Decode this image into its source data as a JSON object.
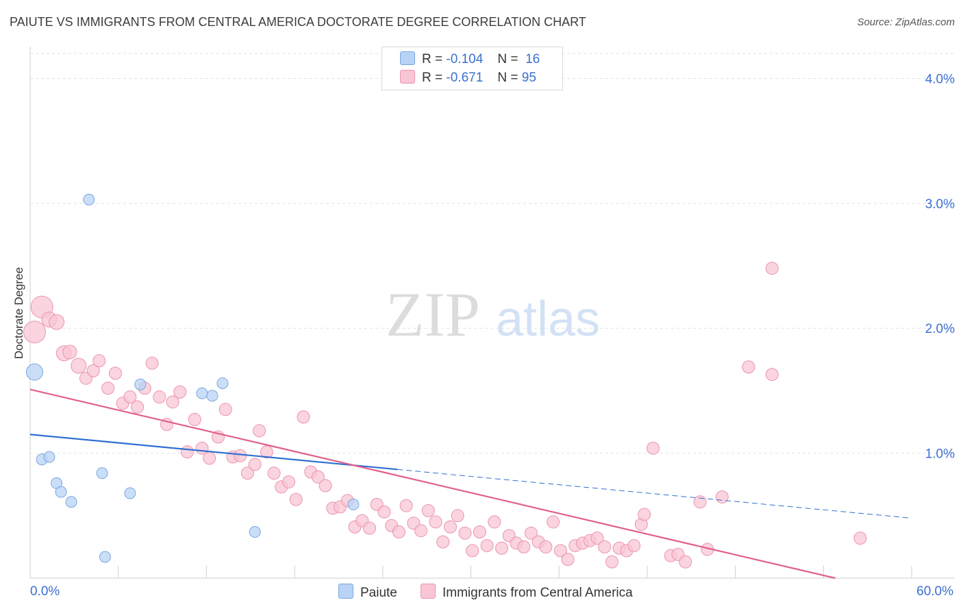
{
  "title": "PAIUTE VS IMMIGRANTS FROM CENTRAL AMERICA DOCTORATE DEGREE CORRELATION CHART",
  "source": "Source: ZipAtlas.com",
  "watermark": {
    "zip": "ZIP",
    "atlas": "atlas"
  },
  "legend": {
    "r_label": "R =",
    "n_label": "N =",
    "series1": {
      "r": "-0.104",
      "n": "16"
    },
    "series2": {
      "r": "-0.671",
      "n": "95"
    }
  },
  "bottom_legend": {
    "series1": "Paiute",
    "series2": "Immigrants from Central America"
  },
  "colors": {
    "paiute_fill": "#b8d3f5",
    "paiute_stroke": "#7aa6e0",
    "paiute_line": "#2f6fd0",
    "central_fill": "#f8c6d4",
    "central_stroke": "#eb94ae",
    "central_line": "#e0608a",
    "axis_text": "#3b6fd0"
  },
  "chart_data": {
    "type": "scatter",
    "title": "PAIUTE VS IMMIGRANTS FROM CENTRAL AMERICA DOCTORATE DEGREE CORRELATION CHART",
    "xlabel": "",
    "ylabel": "Doctorate Degree",
    "xlim": [
      0,
      60
    ],
    "ylim": [
      0,
      4.2
    ],
    "x_tick_labels": [
      "0.0%",
      "60.0%"
    ],
    "y_ticks": [
      1,
      2,
      3,
      4
    ],
    "y_tick_labels": [
      "1.0%",
      "2.0%",
      "3.0%",
      "4.0%"
    ],
    "grid": true,
    "series": [
      {
        "name": "Paiute",
        "r": -0.104,
        "n": 16,
        "trend": {
          "x0": 0,
          "y0": 1.15,
          "x1": 25,
          "y1": 0.87,
          "dash_to_x": 60,
          "dash_to_y": 0.48
        },
        "points": [
          {
            "x": 0.3,
            "y": 1.65,
            "s": 12
          },
          {
            "x": 4,
            "y": 3.03,
            "s": 8
          },
          {
            "x": 0.8,
            "y": 0.95,
            "s": 8
          },
          {
            "x": 1.3,
            "y": 0.97,
            "s": 8
          },
          {
            "x": 1.8,
            "y": 0.76,
            "s": 8
          },
          {
            "x": 2.1,
            "y": 0.69,
            "s": 8
          },
          {
            "x": 2.8,
            "y": 0.61,
            "s": 8
          },
          {
            "x": 4.9,
            "y": 0.84,
            "s": 8
          },
          {
            "x": 5.1,
            "y": 0.17,
            "s": 8
          },
          {
            "x": 6.8,
            "y": 0.68,
            "s": 8
          },
          {
            "x": 7.5,
            "y": 1.55,
            "s": 8
          },
          {
            "x": 11.7,
            "y": 1.48,
            "s": 8
          },
          {
            "x": 12.4,
            "y": 1.46,
            "s": 8
          },
          {
            "x": 13.1,
            "y": 1.56,
            "s": 8
          },
          {
            "x": 15.3,
            "y": 0.37,
            "s": 8
          },
          {
            "x": 22.0,
            "y": 0.59,
            "s": 8
          }
        ]
      },
      {
        "name": "Immigrants from Central America",
        "r": -0.671,
        "n": 95,
        "trend": {
          "x0": 0,
          "y0": 1.51,
          "x1": 54.8,
          "y1": 0.0
        },
        "points": [
          {
            "x": 0.3,
            "y": 1.97,
            "s": 16
          },
          {
            "x": 0.8,
            "y": 2.17,
            "s": 16
          },
          {
            "x": 1.3,
            "y": 2.07,
            "s": 11
          },
          {
            "x": 1.8,
            "y": 2.05,
            "s": 11
          },
          {
            "x": 2.3,
            "y": 1.8,
            "s": 11
          },
          {
            "x": 2.7,
            "y": 1.81,
            "s": 10
          },
          {
            "x": 3.3,
            "y": 1.7,
            "s": 11
          },
          {
            "x": 3.8,
            "y": 1.6,
            "s": 9
          },
          {
            "x": 4.3,
            "y": 1.66,
            "s": 9
          },
          {
            "x": 4.7,
            "y": 1.74,
            "s": 9
          },
          {
            "x": 5.3,
            "y": 1.52,
            "s": 9
          },
          {
            "x": 5.8,
            "y": 1.64,
            "s": 9
          },
          {
            "x": 6.3,
            "y": 1.4,
            "s": 9
          },
          {
            "x": 6.8,
            "y": 1.45,
            "s": 9
          },
          {
            "x": 7.3,
            "y": 1.37,
            "s": 9
          },
          {
            "x": 7.8,
            "y": 1.52,
            "s": 9
          },
          {
            "x": 8.3,
            "y": 1.72,
            "s": 9
          },
          {
            "x": 8.8,
            "y": 1.45,
            "s": 9
          },
          {
            "x": 9.3,
            "y": 1.23,
            "s": 9
          },
          {
            "x": 9.7,
            "y": 1.41,
            "s": 9
          },
          {
            "x": 10.2,
            "y": 1.49,
            "s": 9
          },
          {
            "x": 10.7,
            "y": 1.01,
            "s": 9
          },
          {
            "x": 11.2,
            "y": 1.27,
            "s": 9
          },
          {
            "x": 11.7,
            "y": 1.04,
            "s": 9
          },
          {
            "x": 12.2,
            "y": 0.96,
            "s": 9
          },
          {
            "x": 12.8,
            "y": 1.13,
            "s": 9
          },
          {
            "x": 13.3,
            "y": 1.35,
            "s": 9
          },
          {
            "x": 13.8,
            "y": 0.97,
            "s": 9
          },
          {
            "x": 14.3,
            "y": 0.98,
            "s": 9
          },
          {
            "x": 14.8,
            "y": 0.84,
            "s": 9
          },
          {
            "x": 15.3,
            "y": 0.91,
            "s": 9
          },
          {
            "x": 15.6,
            "y": 1.18,
            "s": 9
          },
          {
            "x": 16.1,
            "y": 1.01,
            "s": 9
          },
          {
            "x": 16.6,
            "y": 0.84,
            "s": 9
          },
          {
            "x": 17.1,
            "y": 0.73,
            "s": 9
          },
          {
            "x": 17.6,
            "y": 0.77,
            "s": 9
          },
          {
            "x": 18.1,
            "y": 0.63,
            "s": 9
          },
          {
            "x": 18.6,
            "y": 1.29,
            "s": 9
          },
          {
            "x": 19.1,
            "y": 0.85,
            "s": 9
          },
          {
            "x": 19.6,
            "y": 0.81,
            "s": 9
          },
          {
            "x": 20.1,
            "y": 0.74,
            "s": 9
          },
          {
            "x": 20.6,
            "y": 0.56,
            "s": 9
          },
          {
            "x": 21.1,
            "y": 0.57,
            "s": 9
          },
          {
            "x": 21.6,
            "y": 0.62,
            "s": 9
          },
          {
            "x": 22.1,
            "y": 0.41,
            "s": 9
          },
          {
            "x": 22.6,
            "y": 0.46,
            "s": 9
          },
          {
            "x": 23.1,
            "y": 0.4,
            "s": 9
          },
          {
            "x": 23.6,
            "y": 0.59,
            "s": 9
          },
          {
            "x": 24.1,
            "y": 0.53,
            "s": 9
          },
          {
            "x": 24.6,
            "y": 0.42,
            "s": 9
          },
          {
            "x": 25.1,
            "y": 0.37,
            "s": 9
          },
          {
            "x": 25.6,
            "y": 0.58,
            "s": 9
          },
          {
            "x": 26.1,
            "y": 0.44,
            "s": 9
          },
          {
            "x": 26.6,
            "y": 0.38,
            "s": 9
          },
          {
            "x": 27.1,
            "y": 0.54,
            "s": 9
          },
          {
            "x": 27.6,
            "y": 0.45,
            "s": 9
          },
          {
            "x": 28.1,
            "y": 0.29,
            "s": 9
          },
          {
            "x": 28.6,
            "y": 0.41,
            "s": 9
          },
          {
            "x": 29.1,
            "y": 0.5,
            "s": 9
          },
          {
            "x": 29.6,
            "y": 0.36,
            "s": 9
          },
          {
            "x": 30.1,
            "y": 0.22,
            "s": 9
          },
          {
            "x": 30.6,
            "y": 0.37,
            "s": 9
          },
          {
            "x": 31.1,
            "y": 0.26,
            "s": 9
          },
          {
            "x": 31.6,
            "y": 0.45,
            "s": 9
          },
          {
            "x": 32.1,
            "y": 0.24,
            "s": 9
          },
          {
            "x": 32.6,
            "y": 0.34,
            "s": 9
          },
          {
            "x": 33.1,
            "y": 0.28,
            "s": 9
          },
          {
            "x": 33.6,
            "y": 0.25,
            "s": 9
          },
          {
            "x": 34.1,
            "y": 0.36,
            "s": 9
          },
          {
            "x": 34.6,
            "y": 0.29,
            "s": 9
          },
          {
            "x": 35.1,
            "y": 0.25,
            "s": 9
          },
          {
            "x": 35.6,
            "y": 0.45,
            "s": 9
          },
          {
            "x": 36.1,
            "y": 0.22,
            "s": 9
          },
          {
            "x": 36.6,
            "y": 0.15,
            "s": 9
          },
          {
            "x": 37.1,
            "y": 0.26,
            "s": 9
          },
          {
            "x": 37.6,
            "y": 0.28,
            "s": 9
          },
          {
            "x": 38.1,
            "y": 0.3,
            "s": 9
          },
          {
            "x": 38.6,
            "y": 0.32,
            "s": 9
          },
          {
            "x": 39.1,
            "y": 0.25,
            "s": 9
          },
          {
            "x": 39.6,
            "y": 0.13,
            "s": 9
          },
          {
            "x": 40.1,
            "y": 0.24,
            "s": 9
          },
          {
            "x": 40.6,
            "y": 0.22,
            "s": 9
          },
          {
            "x": 41.1,
            "y": 0.26,
            "s": 9
          },
          {
            "x": 41.6,
            "y": 0.43,
            "s": 9
          },
          {
            "x": 41.8,
            "y": 0.51,
            "s": 9
          },
          {
            "x": 42.4,
            "y": 1.04,
            "s": 9
          },
          {
            "x": 43.6,
            "y": 0.18,
            "s": 9
          },
          {
            "x": 44.1,
            "y": 0.19,
            "s": 9
          },
          {
            "x": 44.6,
            "y": 0.13,
            "s": 9
          },
          {
            "x": 45.6,
            "y": 0.61,
            "s": 9
          },
          {
            "x": 46.1,
            "y": 0.23,
            "s": 9
          },
          {
            "x": 47.1,
            "y": 0.65,
            "s": 9
          },
          {
            "x": 48.9,
            "y": 1.69,
            "s": 9
          },
          {
            "x": 50.5,
            "y": 1.63,
            "s": 9
          },
          {
            "x": 56.5,
            "y": 0.32,
            "s": 9
          }
        ]
      }
    ]
  },
  "extra_point": {
    "x": 50.5,
    "y": 2.48
  }
}
